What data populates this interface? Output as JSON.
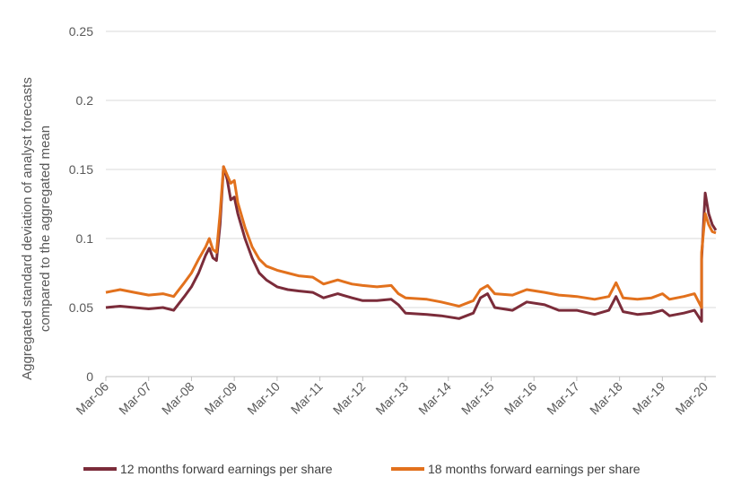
{
  "chart_data": {
    "type": "line",
    "title": "",
    "xlabel": "",
    "ylabel_line1": "Aggregated standard deviation of analyst forecasts",
    "ylabel_line2": "compared to the aggregated mean",
    "ylim": [
      0,
      0.25
    ],
    "yticks": [
      "0",
      "0.05",
      "0.1",
      "0.15",
      "0.2",
      "0.25"
    ],
    "xlim": [
      "2006-03",
      "2020-06"
    ],
    "xticks": [
      "Mar-06",
      "Mar-07",
      "Mar-08",
      "Mar-09",
      "Mar-10",
      "Mar-11",
      "Mar-12",
      "Mar-13",
      "Mar-14",
      "Mar-15",
      "Mar-16",
      "Mar-17",
      "Mar-18",
      "Mar-19",
      "Mar-20"
    ],
    "grid": "horizontal",
    "legend_position": "bottom",
    "series": [
      {
        "name": "12 months forward earnings per share",
        "color": "#7B2C3A",
        "points": [
          [
            "2006-03",
            0.05
          ],
          [
            "2006-07",
            0.051
          ],
          [
            "2006-11",
            0.05
          ],
          [
            "2007-03",
            0.049
          ],
          [
            "2007-07",
            0.05
          ],
          [
            "2007-10",
            0.048
          ],
          [
            "2008-01",
            0.058
          ],
          [
            "2008-03",
            0.065
          ],
          [
            "2008-05",
            0.075
          ],
          [
            "2008-07",
            0.088
          ],
          [
            "2008-08",
            0.093
          ],
          [
            "2008-09",
            0.086
          ],
          [
            "2008-10",
            0.084
          ],
          [
            "2008-11",
            0.11
          ],
          [
            "2008-12",
            0.152
          ],
          [
            "2009-01",
            0.143
          ],
          [
            "2009-02",
            0.128
          ],
          [
            "2009-03",
            0.13
          ],
          [
            "2009-04",
            0.118
          ],
          [
            "2009-06",
            0.1
          ],
          [
            "2009-08",
            0.086
          ],
          [
            "2009-10",
            0.075
          ],
          [
            "2009-12",
            0.07
          ],
          [
            "2010-03",
            0.065
          ],
          [
            "2010-06",
            0.063
          ],
          [
            "2010-09",
            0.062
          ],
          [
            "2011-01",
            0.061
          ],
          [
            "2011-04",
            0.057
          ],
          [
            "2011-08",
            0.06
          ],
          [
            "2011-12",
            0.057
          ],
          [
            "2012-03",
            0.055
          ],
          [
            "2012-07",
            0.055
          ],
          [
            "2012-11",
            0.056
          ],
          [
            "2013-01",
            0.052
          ],
          [
            "2013-03",
            0.046
          ],
          [
            "2013-09",
            0.045
          ],
          [
            "2014-01",
            0.044
          ],
          [
            "2014-06",
            0.042
          ],
          [
            "2014-10",
            0.046
          ],
          [
            "2014-12",
            0.057
          ],
          [
            "2015-02",
            0.06
          ],
          [
            "2015-04",
            0.05
          ],
          [
            "2015-09",
            0.048
          ],
          [
            "2016-01",
            0.054
          ],
          [
            "2016-06",
            0.052
          ],
          [
            "2016-10",
            0.048
          ],
          [
            "2017-03",
            0.048
          ],
          [
            "2017-08",
            0.045
          ],
          [
            "2017-12",
            0.048
          ],
          [
            "2018-02",
            0.058
          ],
          [
            "2018-04",
            0.047
          ],
          [
            "2018-08",
            0.045
          ],
          [
            "2018-12",
            0.046
          ],
          [
            "2019-03",
            0.048
          ],
          [
            "2019-05",
            0.044
          ],
          [
            "2019-09",
            0.046
          ],
          [
            "2019-12",
            0.048
          ],
          [
            "2020-01",
            0.044
          ],
          [
            "2020-02",
            0.04
          ],
          [
            "2020-02",
            0.085
          ],
          [
            "2020-03",
            0.133
          ],
          [
            "2020-04",
            0.118
          ],
          [
            "2020-05",
            0.11
          ],
          [
            "2020-06",
            0.106
          ]
        ]
      },
      {
        "name": "18 months forward earnings per share",
        "color": "#E2711D",
        "points": [
          [
            "2006-03",
            0.061
          ],
          [
            "2006-07",
            0.063
          ],
          [
            "2006-11",
            0.061
          ],
          [
            "2007-03",
            0.059
          ],
          [
            "2007-07",
            0.06
          ],
          [
            "2007-10",
            0.058
          ],
          [
            "2008-01",
            0.068
          ],
          [
            "2008-03",
            0.075
          ],
          [
            "2008-05",
            0.085
          ],
          [
            "2008-07",
            0.094
          ],
          [
            "2008-08",
            0.1
          ],
          [
            "2008-09",
            0.092
          ],
          [
            "2008-10",
            0.09
          ],
          [
            "2008-11",
            0.118
          ],
          [
            "2008-12",
            0.152
          ],
          [
            "2009-01",
            0.146
          ],
          [
            "2009-02",
            0.14
          ],
          [
            "2009-03",
            0.142
          ],
          [
            "2009-04",
            0.126
          ],
          [
            "2009-06",
            0.108
          ],
          [
            "2009-08",
            0.094
          ],
          [
            "2009-10",
            0.085
          ],
          [
            "2009-12",
            0.08
          ],
          [
            "2010-03",
            0.077
          ],
          [
            "2010-06",
            0.075
          ],
          [
            "2010-09",
            0.073
          ],
          [
            "2011-01",
            0.072
          ],
          [
            "2011-04",
            0.067
          ],
          [
            "2011-08",
            0.07
          ],
          [
            "2011-12",
            0.067
          ],
          [
            "2012-03",
            0.066
          ],
          [
            "2012-07",
            0.065
          ],
          [
            "2012-11",
            0.066
          ],
          [
            "2013-01",
            0.06
          ],
          [
            "2013-03",
            0.057
          ],
          [
            "2013-09",
            0.056
          ],
          [
            "2014-01",
            0.054
          ],
          [
            "2014-06",
            0.051
          ],
          [
            "2014-10",
            0.055
          ],
          [
            "2014-12",
            0.063
          ],
          [
            "2015-02",
            0.066
          ],
          [
            "2015-04",
            0.06
          ],
          [
            "2015-09",
            0.059
          ],
          [
            "2016-01",
            0.063
          ],
          [
            "2016-06",
            0.061
          ],
          [
            "2016-10",
            0.059
          ],
          [
            "2017-03",
            0.058
          ],
          [
            "2017-08",
            0.056
          ],
          [
            "2017-12",
            0.058
          ],
          [
            "2018-02",
            0.068
          ],
          [
            "2018-04",
            0.057
          ],
          [
            "2018-08",
            0.056
          ],
          [
            "2018-12",
            0.057
          ],
          [
            "2019-03",
            0.06
          ],
          [
            "2019-05",
            0.056
          ],
          [
            "2019-09",
            0.058
          ],
          [
            "2019-12",
            0.06
          ],
          [
            "2020-01",
            0.055
          ],
          [
            "2020-02",
            0.05
          ],
          [
            "2020-02",
            0.09
          ],
          [
            "2020-03",
            0.118
          ],
          [
            "2020-04",
            0.11
          ],
          [
            "2020-05",
            0.105
          ],
          [
            "2020-06",
            0.104
          ]
        ]
      }
    ]
  }
}
